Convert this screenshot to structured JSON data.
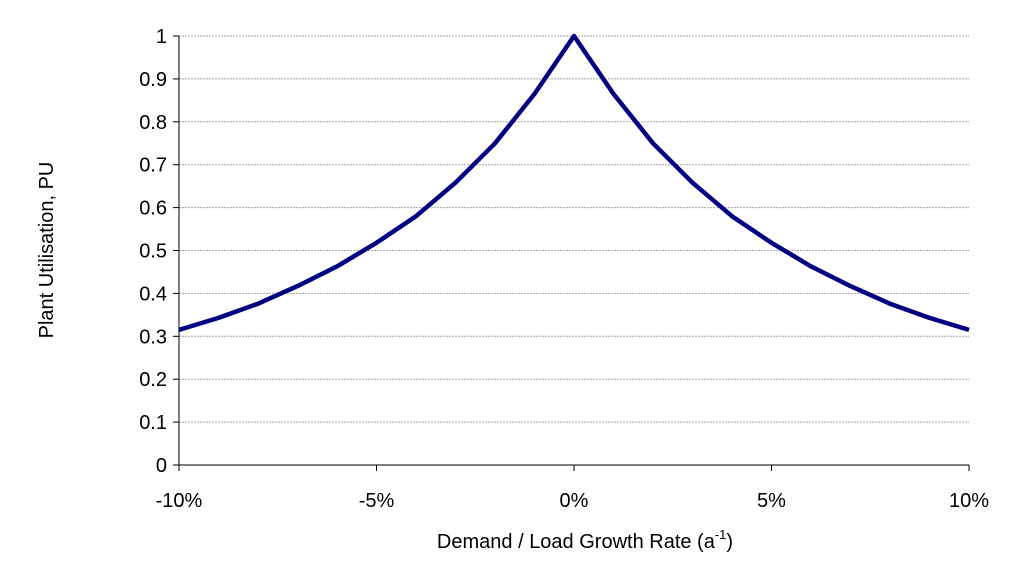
{
  "chart_data": {
    "type": "line",
    "xlabel_main": "Demand / Load Growth Rate (a",
    "xlabel_sup": "-1",
    "xlabel_end": ")",
    "ylabel": "Plant Utilisation, PU",
    "xlim": [
      -10,
      10
    ],
    "ylim": [
      0,
      1
    ],
    "x_ticks": [
      -10,
      -5,
      0,
      5,
      10
    ],
    "x_tick_labels": [
      "-10%",
      "-5%",
      "0%",
      "5%",
      "10%"
    ],
    "y_ticks": [
      0,
      0.1,
      0.2,
      0.3,
      0.4,
      0.5,
      0.6,
      0.7,
      0.8,
      0.9,
      1
    ],
    "y_tick_labels": [
      "0",
      "0.1",
      "0.2",
      "0.3",
      "0.4",
      "0.5",
      "0.6",
      "0.7",
      "0.8",
      "0.9",
      "1"
    ],
    "grid": true,
    "colors": {
      "line": "#000080",
      "grid": "#a6a6a6"
    },
    "series": [
      {
        "x": [
          -10,
          -9,
          -8,
          -7,
          -6,
          -5,
          -4,
          -3,
          -2,
          -1,
          0,
          1,
          2,
          3,
          4,
          5,
          6,
          7,
          8,
          9,
          10
        ],
        "values": [
          0.315,
          0.343,
          0.376,
          0.417,
          0.463,
          0.518,
          0.58,
          0.658,
          0.75,
          0.865,
          1.0,
          0.865,
          0.75,
          0.658,
          0.58,
          0.518,
          0.463,
          0.417,
          0.376,
          0.343,
          0.315
        ]
      }
    ]
  }
}
